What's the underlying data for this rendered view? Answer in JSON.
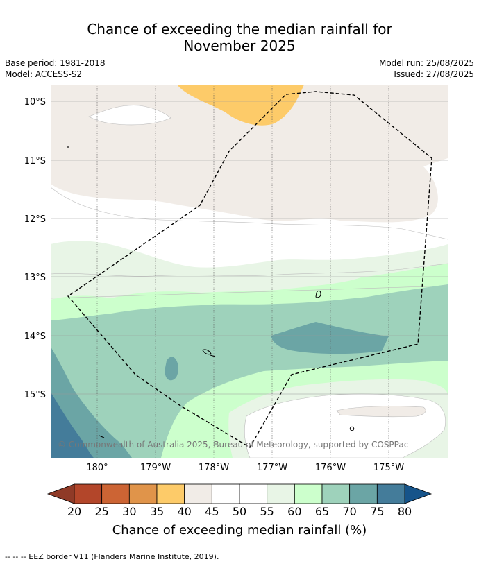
{
  "title": {
    "line1": "Chance of exceeding the median rainfall for",
    "line2": "November 2025"
  },
  "meta": {
    "base_period": "Base period: 1981-2018",
    "model": "Model: ACCESS-S2",
    "model_run": "Model run: 25/08/2025",
    "issued": "Issued: 27/08/2025"
  },
  "map": {
    "lat_labels": [
      "10°S",
      "11°S",
      "12°S",
      "13°S",
      "14°S",
      "15°S"
    ],
    "lon_labels": [
      "180°",
      "179°W",
      "178°W",
      "177°W",
      "176°W",
      "175°W"
    ],
    "copyright": "© Commonwealth of Australia 2025, Bureau of Meteorology, supported by COSPPac"
  },
  "colorbar": {
    "ticks": [
      "20",
      "25",
      "30",
      "35",
      "40",
      "45",
      "50",
      "55",
      "60",
      "65",
      "70",
      "75",
      "80"
    ],
    "colors": [
      "#b3462a",
      "#cc6434",
      "#e0944a",
      "#fdcb69",
      "#f1ece7",
      "#ffffff",
      "#ffffff",
      "#e8f5e6",
      "#ccffcc",
      "#9ed2bb",
      "#6ba5a5",
      "#447c9a"
    ],
    "under_color": "#8f3a27",
    "over_color": "#16548a",
    "label": "Chance of exceeding median rainfall (%)"
  },
  "footer": "--  --  -- EEZ border V11 (Flanders Marine Institute, 2019)."
}
